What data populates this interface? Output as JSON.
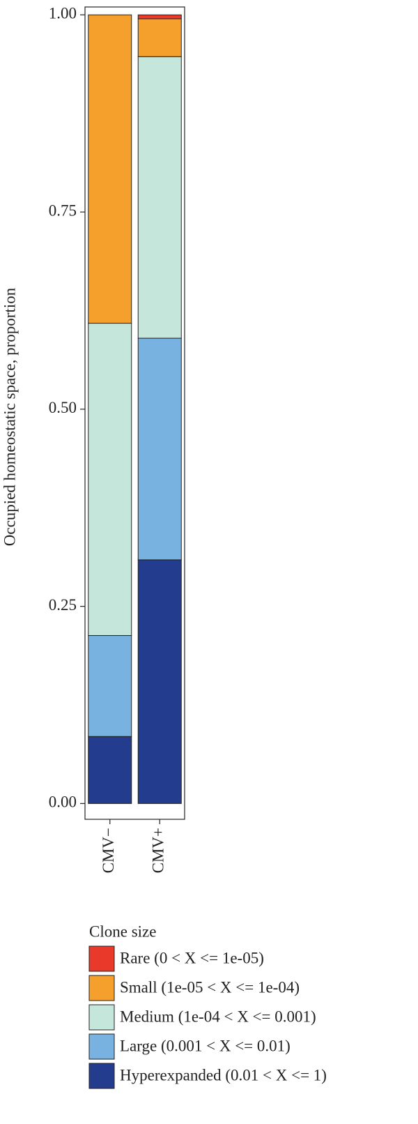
{
  "chart_data": {
    "type": "stacked-bar",
    "y_label": "Occupied homeostatic space, proportion",
    "categories": [
      "CMV−",
      "CMV+"
    ],
    "legend_title": "Clone size",
    "series": [
      {
        "name": "Rare (0 < X <= 1e-05)",
        "color": "#e8392b",
        "values": [
          0,
          0.005
        ]
      },
      {
        "name": "Small (1e-05 < X <= 1e-04)",
        "color": "#f5a02c",
        "values": [
          0.391,
          0.048
        ]
      },
      {
        "name": "Medium (1e-04 < X <= 0.001)",
        "color": "#c5e6da",
        "values": [
          0.396,
          0.357
        ]
      },
      {
        "name": "Large (0.001 < X <= 0.01)",
        "color": "#78b2e0",
        "values": [
          0.128,
          0.281
        ]
      },
      {
        "name": "Hyperexpanded (0.01 < X <= 1)",
        "color": "#233c8e",
        "values": [
          0.085,
          0.309
        ]
      }
    ],
    "ylim": [
      -0.02,
      1.01
    ],
    "yticks": [
      {
        "value": 0,
        "label": "0.00"
      },
      {
        "value": 0.25,
        "label": "0.25"
      },
      {
        "value": 0.5,
        "label": "0.50"
      },
      {
        "value": 0.75,
        "label": "0.75"
      },
      {
        "value": 1,
        "label": "1.00"
      }
    ]
  }
}
